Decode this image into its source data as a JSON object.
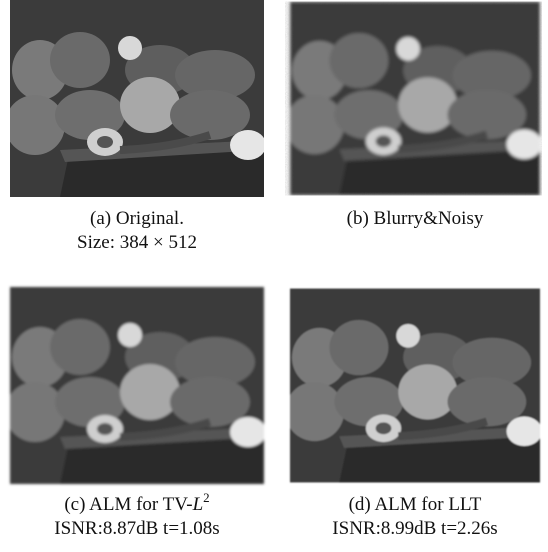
{
  "panels": [
    {
      "caption": {
        "label": "(a) Original.",
        "detail": "Size: 384 × 512"
      }
    },
    {
      "caption": {
        "label": "(b) Blurry&Noisy"
      }
    },
    {
      "caption": {
        "label": {
          "text": "(c) ALM for TV-",
          "var": "L",
          "sup": "2"
        },
        "detail": "ISNR:8.87dB t=1.08s"
      }
    },
    {
      "caption": {
        "label": "(d) ALM for LLT",
        "detail": "ISNR:8.99dB t=2.26s"
      }
    }
  ]
}
